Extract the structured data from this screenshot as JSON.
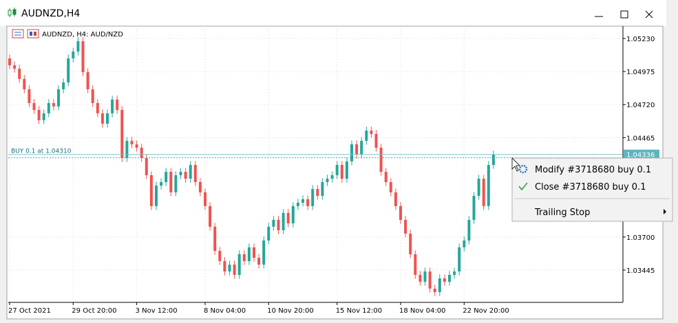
{
  "window": {
    "title": "AUDNZD,H4"
  },
  "menu": {
    "items": [
      "Modify #3718680 buy 0.1",
      "Close #3718680 buy 0.1",
      "Trailing Stop"
    ]
  },
  "chart_data": {
    "type": "candlestick",
    "title": "AUDNZD, H4:  AUD/NZD",
    "categories": [
      "27 Oct 2021",
      null,
      null,
      null,
      null,
      null,
      null,
      null,
      null,
      null,
      null,
      null,
      null,
      "29 Oct 20:00",
      null,
      null,
      null,
      null,
      null,
      null,
      null,
      null,
      null,
      null,
      null,
      null,
      "3 Nov 12:00",
      null,
      null,
      null,
      null,
      null,
      null,
      null,
      null,
      null,
      null,
      null,
      null,
      null,
      "8 Nov 04:00",
      null,
      null,
      null,
      null,
      null,
      null,
      null,
      null,
      null,
      null,
      null,
      null,
      "10 Nov 20:00",
      null,
      null,
      null,
      null,
      null,
      null,
      null,
      null,
      null,
      null,
      null,
      null,
      null,
      "15 Nov 12:00",
      null,
      null,
      null,
      null,
      null,
      null,
      null,
      null,
      null,
      null,
      null,
      null,
      "18 Nov 04:00",
      null,
      null,
      null,
      null,
      null,
      null,
      null,
      null,
      null,
      null,
      null,
      null,
      "22 Nov 20:00",
      null,
      null,
      null,
      null,
      null,
      null
    ],
    "ohlc": [
      [
        1.05076,
        1.05106,
        1.04993,
        1.05023
      ],
      [
        1.05023,
        1.05053,
        1.04967,
        1.04997
      ],
      [
        1.04997,
        1.05027,
        1.04888,
        1.04918
      ],
      [
        1.04918,
        1.04948,
        1.04808,
        1.04838
      ],
      [
        1.04838,
        1.04868,
        1.04702,
        1.04732
      ],
      [
        1.04732,
        1.04762,
        1.04649,
        1.04679
      ],
      [
        1.04679,
        1.04709,
        1.0457,
        1.046
      ],
      [
        1.046,
        1.04683,
        1.0457,
        1.04653
      ],
      [
        1.04653,
        1.04762,
        1.04623,
        1.04732
      ],
      [
        1.04732,
        1.04762,
        1.04676,
        1.04706
      ],
      [
        1.04706,
        1.04868,
        1.04676,
        1.04838
      ],
      [
        1.04838,
        1.04921,
        1.04808,
        1.04891
      ],
      [
        1.04891,
        1.05106,
        1.04861,
        1.05076
      ],
      [
        1.05076,
        1.05159,
        1.05046,
        1.05129
      ],
      [
        1.05129,
        1.05239,
        1.05099,
        1.05209
      ],
      [
        1.05209,
        1.05239,
        1.0494,
        1.0497
      ],
      [
        1.0497,
        1.05,
        1.04808,
        1.04838
      ],
      [
        1.04838,
        1.04868,
        1.04702,
        1.04732
      ],
      [
        1.04732,
        1.04762,
        1.04623,
        1.04653
      ],
      [
        1.04653,
        1.04683,
        1.04543,
        1.04573
      ],
      [
        1.04573,
        1.04683,
        1.04543,
        1.04653
      ],
      [
        1.04653,
        1.04789,
        1.04623,
        1.04759
      ],
      [
        1.04759,
        1.04789,
        1.04649,
        1.04679
      ],
      [
        1.04679,
        1.04709,
        1.04278,
        1.04308
      ],
      [
        1.04308,
        1.04471,
        1.04278,
        1.04441
      ],
      [
        1.04441,
        1.04471,
        1.04384,
        1.04414
      ],
      [
        1.04414,
        1.04444,
        1.04358,
        1.04388
      ],
      [
        1.04388,
        1.04418,
        1.04278,
        1.04308
      ],
      [
        1.04308,
        1.04338,
        1.04146,
        1.04176
      ],
      [
        1.04176,
        1.04206,
        1.03908,
        1.03938
      ],
      [
        1.03938,
        1.04126,
        1.03908,
        1.04096
      ],
      [
        1.04096,
        1.04153,
        1.04066,
        1.04123
      ],
      [
        1.04123,
        1.04232,
        1.04093,
        1.04202
      ],
      [
        1.04202,
        1.04232,
        1.04014,
        1.04044
      ],
      [
        1.04044,
        1.04206,
        1.04014,
        1.04176
      ],
      [
        1.04176,
        1.04232,
        1.04146,
        1.04202
      ],
      [
        1.04202,
        1.04232,
        1.04119,
        1.04149
      ],
      [
        1.04149,
        1.04285,
        1.04119,
        1.04255
      ],
      [
        1.04255,
        1.04285,
        1.04093,
        1.04123
      ],
      [
        1.04123,
        1.04153,
        1.04014,
        1.04044
      ],
      [
        1.04044,
        1.04074,
        1.03908,
        1.03938
      ],
      [
        1.03938,
        1.03968,
        1.03749,
        1.03779
      ],
      [
        1.03779,
        1.03809,
        1.03563,
        1.03593
      ],
      [
        1.03593,
        1.03623,
        1.03484,
        1.03514
      ],
      [
        1.03514,
        1.03544,
        1.03404,
        1.03434
      ],
      [
        1.03434,
        1.03517,
        1.03404,
        1.03487
      ],
      [
        1.03487,
        1.03517,
        1.03378,
        1.03408
      ],
      [
        1.03408,
        1.03597,
        1.03378,
        1.03567
      ],
      [
        1.03567,
        1.03597,
        1.03484,
        1.03514
      ],
      [
        1.03514,
        1.0365,
        1.03484,
        1.0362
      ],
      [
        1.0362,
        1.0365,
        1.0351,
        1.0354
      ],
      [
        1.0354,
        1.0357,
        1.03457,
        1.03487
      ],
      [
        1.03487,
        1.03703,
        1.03457,
        1.03673
      ],
      [
        1.03673,
        1.03809,
        1.03643,
        1.03779
      ],
      [
        1.03779,
        1.03862,
        1.03749,
        1.03832
      ],
      [
        1.03832,
        1.03862,
        1.03722,
        1.03752
      ],
      [
        1.03752,
        1.03915,
        1.03722,
        1.03885
      ],
      [
        1.03885,
        1.03915,
        1.03775,
        1.03805
      ],
      [
        1.03805,
        1.03968,
        1.03775,
        1.03938
      ],
      [
        1.03938,
        1.03994,
        1.03908,
        1.03964
      ],
      [
        1.03964,
        1.04021,
        1.03934,
        1.03991
      ],
      [
        1.03991,
        1.04021,
        1.03908,
        1.03938
      ],
      [
        1.03938,
        1.041,
        1.03908,
        1.0407
      ],
      [
        1.0407,
        1.041,
        1.03987,
        1.04017
      ],
      [
        1.04017,
        1.04153,
        1.03987,
        1.04123
      ],
      [
        1.04123,
        1.04179,
        1.04093,
        1.04149
      ],
      [
        1.04149,
        1.04206,
        1.04119,
        1.04176
      ],
      [
        1.04176,
        1.04285,
        1.04146,
        1.04255
      ],
      [
        1.04255,
        1.04285,
        1.04119,
        1.04149
      ],
      [
        1.04149,
        1.04312,
        1.04119,
        1.04282
      ],
      [
        1.04282,
        1.04444,
        1.04252,
        1.04414
      ],
      [
        1.04414,
        1.04444,
        1.04305,
        1.04335
      ],
      [
        1.04335,
        1.04471,
        1.04305,
        1.04441
      ],
      [
        1.04441,
        1.0455,
        1.04411,
        1.0452
      ],
      [
        1.0452,
        1.0455,
        1.04464,
        1.04494
      ],
      [
        1.04494,
        1.04524,
        1.04358,
        1.04388
      ],
      [
        1.04388,
        1.04418,
        1.04172,
        1.04202
      ],
      [
        1.04202,
        1.04232,
        1.04093,
        1.04123
      ],
      [
        1.04123,
        1.04153,
        1.04014,
        1.04044
      ],
      [
        1.04044,
        1.04074,
        1.03908,
        1.03938
      ],
      [
        1.03938,
        1.03968,
        1.03802,
        1.03832
      ],
      [
        1.03832,
        1.03862,
        1.03696,
        1.03726
      ],
      [
        1.03726,
        1.03756,
        1.03537,
        1.03567
      ],
      [
        1.03567,
        1.03597,
        1.03378,
        1.03408
      ],
      [
        1.03408,
        1.03438,
        1.03325,
        1.03355
      ],
      [
        1.03355,
        1.03464,
        1.03325,
        1.03434
      ],
      [
        1.03434,
        1.03464,
        1.03272,
        1.03302
      ],
      [
        1.03302,
        1.03332,
        1.03245,
        1.03275
      ],
      [
        1.03275,
        1.03411,
        1.03245,
        1.03381
      ],
      [
        1.03381,
        1.03411,
        1.03325,
        1.03355
      ],
      [
        1.03355,
        1.03438,
        1.03325,
        1.03408
      ],
      [
        1.03408,
        1.03464,
        1.03378,
        1.03434
      ],
      [
        1.03434,
        1.0365,
        1.03404,
        1.0362
      ],
      [
        1.0362,
        1.03703,
        1.0359,
        1.03673
      ],
      [
        1.03673,
        1.03862,
        1.03643,
        1.03832
      ],
      [
        1.03832,
        1.04047,
        1.03802,
        1.04017
      ],
      [
        1.04017,
        1.04179,
        1.03987,
        1.04149
      ],
      [
        1.04149,
        1.04179,
        1.03908,
        1.03938
      ],
      [
        1.03938,
        1.04285,
        1.03908,
        1.04255
      ],
      [
        1.04255,
        1.04366,
        1.04225,
        1.04336
      ]
    ],
    "ylim": [
      1.03196,
      1.05325
    ],
    "yticks": [
      {
        "value": 1.0523,
        "label": "1.05230"
      },
      1.04975,
      {
        "value": 1.0472,
        "label": "1.04720"
      },
      1.04465,
      {
        "value": 1.037,
        "label": "1.03700"
      },
      1.03445
    ],
    "grid": true,
    "up_color": "#26a69a",
    "down_color": "#ef5350",
    "current_price": 1.04336,
    "order_label": "BUY 0.1 at 1.04310",
    "order_price": 1.0431
  }
}
